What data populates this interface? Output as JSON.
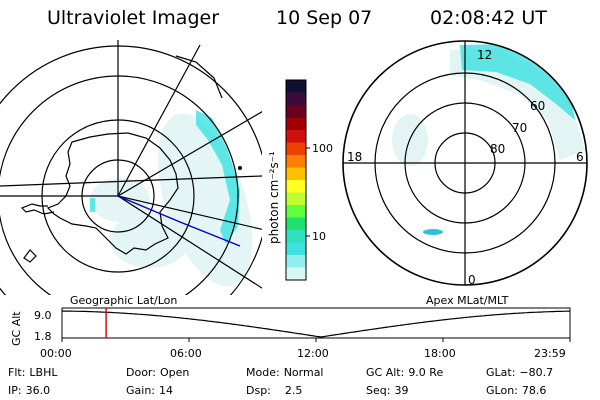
{
  "header": {
    "title": "Ultraviolet Imager",
    "date": "10 Sep 07",
    "time": "02:08:42 UT"
  },
  "colorbar": {
    "unit_label": "photon cm⁻²s⁻¹",
    "ticks": [
      "100",
      "10"
    ],
    "colors": [
      "#101030",
      "#3a0a3a",
      "#6a0020",
      "#a00000",
      "#d01010",
      "#f04000",
      "#ff8000",
      "#ffc000",
      "#ffff20",
      "#c0ff30",
      "#60ff40",
      "#20e070",
      "#30e0c0",
      "#40e0e0",
      "#90f0f0",
      "#d8f8f8"
    ]
  },
  "map_left": {
    "label": "Geographic Lat/Lon",
    "coast_color": "#000000",
    "footprint_color": "#0000c0",
    "aurora_color": "#30e0e0"
  },
  "map_right": {
    "label": "Apex MLat/MLT",
    "mlt_labels": {
      "top": "12",
      "left": "18",
      "right": "6",
      "bottom": "0"
    },
    "mlat_labels": [
      "60",
      "70",
      "80"
    ]
  },
  "altitude_plot": {
    "ylabel": "GC Alt",
    "y_ticks": [
      "9.0",
      "1.8"
    ],
    "x_ticks": [
      "00:00",
      "06:00",
      "12:00",
      "18:00",
      "23:59"
    ],
    "marker_color": "#d00000",
    "current_time_fraction": 0.0868
  },
  "status": {
    "row1": [
      {
        "key": "Flt:",
        "val": "LBHL"
      },
      {
        "key": "Door:",
        "val": "Open"
      },
      {
        "key": "Mode:",
        "val": "Normal"
      },
      {
        "key": "GC Alt:",
        "val": "9.0 Re"
      },
      {
        "key": "GLat:",
        "val": "−80.7"
      }
    ],
    "row2": [
      {
        "key": "IP:",
        "val": "36.0"
      },
      {
        "key": "Gain:",
        "val": "14"
      },
      {
        "key": "Dsp:",
        "val": "2.5"
      },
      {
        "key": "Seq:",
        "val": "39"
      },
      {
        "key": "GLon:",
        "val": "78.6"
      }
    ]
  }
}
